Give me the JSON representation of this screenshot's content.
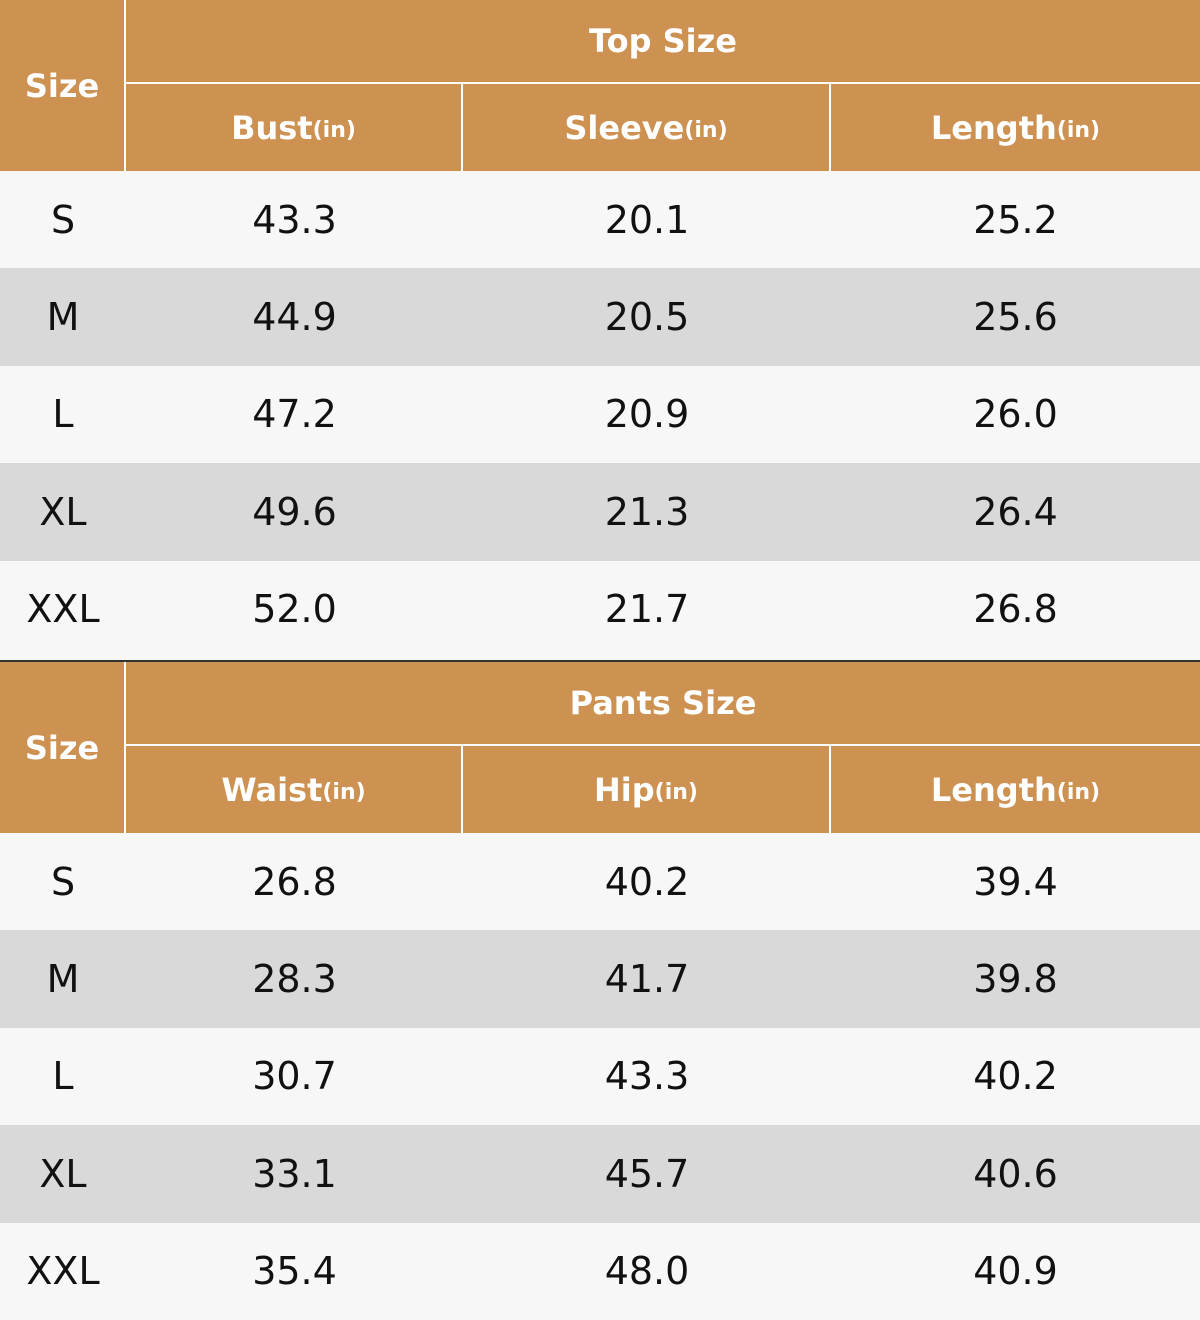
{
  "tables": [
    {
      "size_label": "Size",
      "group_title": "Top Size",
      "columns": [
        {
          "name": "Bust",
          "unit": "(in)"
        },
        {
          "name": "Sleeve",
          "unit": "(in)"
        },
        {
          "name": "Length",
          "unit": "(in)"
        }
      ],
      "rows": [
        [
          "S",
          "43.3",
          "20.1",
          "25.2"
        ],
        [
          "M",
          "44.9",
          "20.5",
          "25.6"
        ],
        [
          "L",
          "47.2",
          "20.9",
          "26.0"
        ],
        [
          "XL",
          "49.6",
          "21.3",
          "26.4"
        ],
        [
          "XXL",
          "52.0",
          "21.7",
          "26.8"
        ]
      ]
    },
    {
      "size_label": "Size",
      "group_title": "Pants Size",
      "columns": [
        {
          "name": "Waist",
          "unit": "(in)"
        },
        {
          "name": "Hip",
          "unit": "(in)"
        },
        {
          "name": "Length",
          "unit": "(in)"
        }
      ],
      "rows": [
        [
          "S",
          "26.8",
          "40.2",
          "39.4"
        ],
        [
          "M",
          "28.3",
          "41.7",
          "39.8"
        ],
        [
          "L",
          "30.7",
          "43.3",
          "40.2"
        ],
        [
          "XL",
          "33.1",
          "45.7",
          "40.6"
        ],
        [
          "XXL",
          "35.4",
          "48.0",
          "40.9"
        ]
      ]
    }
  ]
}
